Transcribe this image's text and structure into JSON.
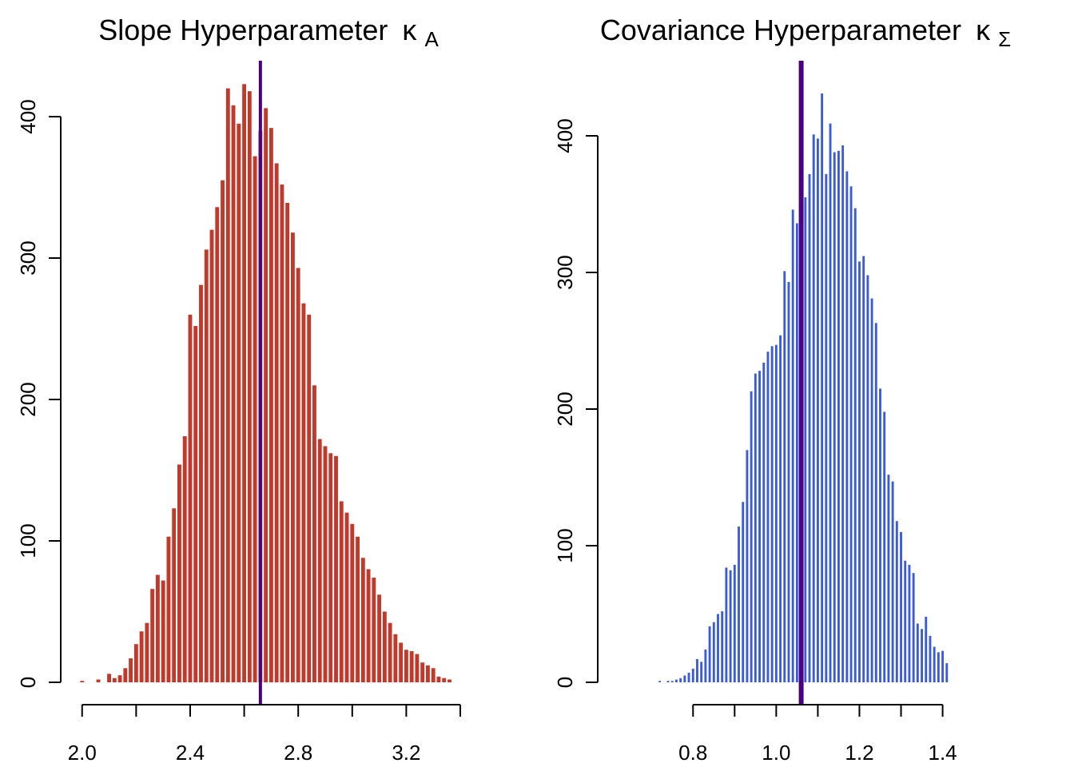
{
  "chart_data": [
    {
      "type": "bar",
      "title": "Slope Hyperparameter",
      "title_symbol": "κ",
      "title_subscript": "A",
      "xlabel": "",
      "ylabel": "",
      "bar_color": "#c0392b",
      "marker_color": "#4b0082",
      "marker_x": 2.66,
      "xlim": [
        1.98,
        3.4
      ],
      "ylim": [
        0,
        440
      ],
      "x_ticks": [
        2.0,
        2.2,
        2.4,
        2.6,
        2.8,
        3.0,
        3.2,
        3.4
      ],
      "x_tick_labels": [
        "2.0",
        "",
        "2.4",
        "",
        "2.8",
        "",
        "3.2",
        ""
      ],
      "y_ticks": [
        0,
        100,
        200,
        300,
        400
      ],
      "y_tick_labels": [
        "0",
        "100",
        "200",
        "300",
        "400"
      ],
      "bin_width": 0.02,
      "x": [
        2.0,
        2.02,
        2.04,
        2.06,
        2.08,
        2.1,
        2.12,
        2.14,
        2.16,
        2.18,
        2.2,
        2.22,
        2.24,
        2.26,
        2.28,
        2.3,
        2.32,
        2.34,
        2.36,
        2.38,
        2.4,
        2.42,
        2.44,
        2.46,
        2.48,
        2.5,
        2.52,
        2.54,
        2.56,
        2.58,
        2.6,
        2.62,
        2.64,
        2.66,
        2.68,
        2.7,
        2.72,
        2.74,
        2.76,
        2.78,
        2.8,
        2.82,
        2.84,
        2.86,
        2.88,
        2.9,
        2.92,
        2.94,
        2.96,
        2.98,
        3.0,
        3.02,
        3.04,
        3.06,
        3.08,
        3.1,
        3.12,
        3.14,
        3.16,
        3.18,
        3.2,
        3.22,
        3.24,
        3.26,
        3.28,
        3.3,
        3.32,
        3.34,
        3.36
      ],
      "values": [
        1,
        0,
        0,
        2,
        0,
        6,
        3,
        5,
        10,
        17,
        27,
        36,
        42,
        66,
        76,
        72,
        103,
        123,
        154,
        174,
        260,
        252,
        281,
        306,
        320,
        336,
        355,
        420,
        408,
        395,
        423,
        418,
        372,
        390,
        406,
        392,
        367,
        352,
        339,
        318,
        293,
        268,
        260,
        210,
        172,
        167,
        162,
        160,
        128,
        120,
        112,
        103,
        88,
        80,
        74,
        62,
        50,
        42,
        34,
        28,
        23,
        22,
        20,
        14,
        12,
        10,
        4,
        3,
        2
      ]
    },
    {
      "type": "bar",
      "title": "Covariance Hyperparameter",
      "title_symbol": "κ",
      "title_subscript": "Σ",
      "xlabel": "",
      "ylabel": "",
      "bar_color": "#3a5bd9",
      "marker_color": "#4b0082",
      "marker_x": 1.06,
      "xlim": [
        0.69,
        1.42
      ],
      "ylim": [
        0,
        450
      ],
      "x_ticks": [
        0.8,
        0.9,
        1.0,
        1.1,
        1.2,
        1.3,
        1.4
      ],
      "x_tick_labels": [
        "0.8",
        "",
        "1.0",
        "",
        "1.2",
        "",
        "1.4"
      ],
      "y_ticks": [
        0,
        100,
        200,
        300,
        400
      ],
      "y_tick_labels": [
        "0",
        "100",
        "200",
        "300",
        "400"
      ],
      "bin_width": 0.01,
      "x": [
        0.72,
        0.73,
        0.74,
        0.75,
        0.76,
        0.77,
        0.78,
        0.79,
        0.8,
        0.81,
        0.82,
        0.83,
        0.84,
        0.85,
        0.86,
        0.87,
        0.88,
        0.89,
        0.9,
        0.91,
        0.92,
        0.93,
        0.94,
        0.95,
        0.96,
        0.97,
        0.98,
        0.99,
        1.0,
        1.01,
        1.02,
        1.03,
        1.04,
        1.05,
        1.06,
        1.07,
        1.08,
        1.09,
        1.1,
        1.11,
        1.12,
        1.13,
        1.14,
        1.15,
        1.16,
        1.17,
        1.18,
        1.19,
        1.2,
        1.21,
        1.22,
        1.23,
        1.24,
        1.25,
        1.26,
        1.27,
        1.28,
        1.29,
        1.3,
        1.31,
        1.32,
        1.33,
        1.34,
        1.35,
        1.36,
        1.37,
        1.38,
        1.39,
        1.4,
        1.41
      ],
      "values": [
        1,
        0,
        1,
        1,
        2,
        3,
        5,
        7,
        10,
        17,
        15,
        24,
        41,
        44,
        50,
        52,
        84,
        82,
        86,
        114,
        132,
        170,
        213,
        226,
        228,
        234,
        242,
        246,
        247,
        254,
        301,
        293,
        346,
        336,
        341,
        355,
        372,
        401,
        398,
        431,
        372,
        409,
        388,
        389,
        393,
        374,
        363,
        347,
        308,
        312,
        298,
        281,
        263,
        215,
        198,
        152,
        147,
        118,
        110,
        89,
        86,
        80,
        43,
        39,
        48,
        34,
        26,
        22,
        23,
        14
      ]
    }
  ]
}
